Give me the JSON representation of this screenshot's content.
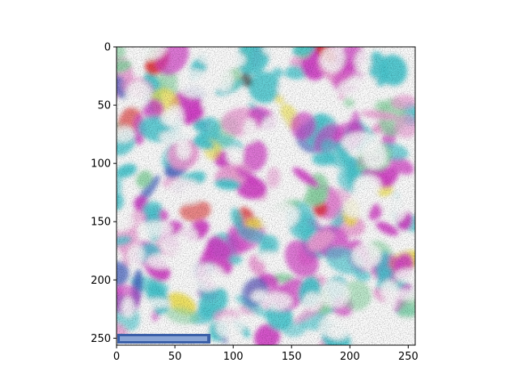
{
  "chart_data": {
    "type": "heatmap",
    "title": "",
    "xlabel": "",
    "ylabel": "",
    "image_size": [
      256,
      256
    ],
    "xlim": [
      0,
      256
    ],
    "ylim": [
      256,
      0
    ],
    "y_axis_inverted": true,
    "grid": false,
    "legend": "none",
    "xticks": [
      0,
      50,
      100,
      150,
      200,
      250
    ],
    "yticks": [
      0,
      50,
      100,
      150,
      200,
      250
    ],
    "xtick_labels": [
      "0",
      "50",
      "100",
      "150",
      "200",
      "250"
    ],
    "ytick_labels": [
      "0",
      "50",
      "100",
      "150",
      "200",
      "250"
    ],
    "overlay_text": "",
    "palette": [
      "#ffffff",
      "#49c9d2",
      "#d542c9",
      "#e0242a",
      "#3f5fc0",
      "#8fd9a8",
      "#f2e34a",
      "#1a1a1a",
      "#f0a0d8"
    ]
  }
}
